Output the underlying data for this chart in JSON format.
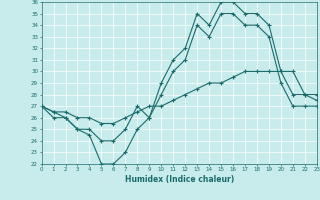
{
  "xlabel": "Humidex (Indice chaleur)",
  "bg_color": "#c8ecec",
  "grid_color": "#ffffff",
  "line_color": "#1a6b6b",
  "marker": "+",
  "x_min": 0,
  "x_max": 23,
  "y_min": 22,
  "y_max": 36,
  "line1_x": [
    0,
    1,
    2,
    3,
    4,
    5,
    6,
    7,
    8,
    9,
    10,
    11,
    12,
    13,
    14,
    15,
    16,
    17,
    18,
    19,
    20,
    21,
    22,
    23
  ],
  "line1_y": [
    27,
    26.5,
    26,
    25,
    25,
    24,
    24,
    25,
    27,
    26,
    29,
    31,
    32,
    35,
    34,
    36,
    36,
    35,
    35,
    34,
    30,
    28,
    28,
    28
  ],
  "line2_x": [
    0,
    1,
    2,
    3,
    4,
    5,
    6,
    7,
    8,
    9,
    10,
    11,
    12,
    13,
    14,
    15,
    16,
    17,
    18,
    19,
    20,
    21,
    22,
    23
  ],
  "line2_y": [
    27,
    26,
    26,
    25,
    24.5,
    22,
    22,
    23,
    25,
    26,
    28,
    30,
    31,
    34,
    33,
    35,
    35,
    34,
    34,
    33,
    29,
    27,
    27,
    27
  ],
  "line3_x": [
    0,
    1,
    2,
    3,
    4,
    5,
    6,
    7,
    8,
    9,
    10,
    11,
    12,
    13,
    14,
    15,
    16,
    17,
    18,
    19,
    20,
    21,
    22,
    23
  ],
  "line3_y": [
    27,
    26.5,
    26.5,
    26,
    26,
    25.5,
    25.5,
    26,
    26.5,
    27,
    27,
    27.5,
    28,
    28.5,
    29,
    29,
    29.5,
    30,
    30,
    30,
    30,
    30,
    28,
    27.5
  ]
}
